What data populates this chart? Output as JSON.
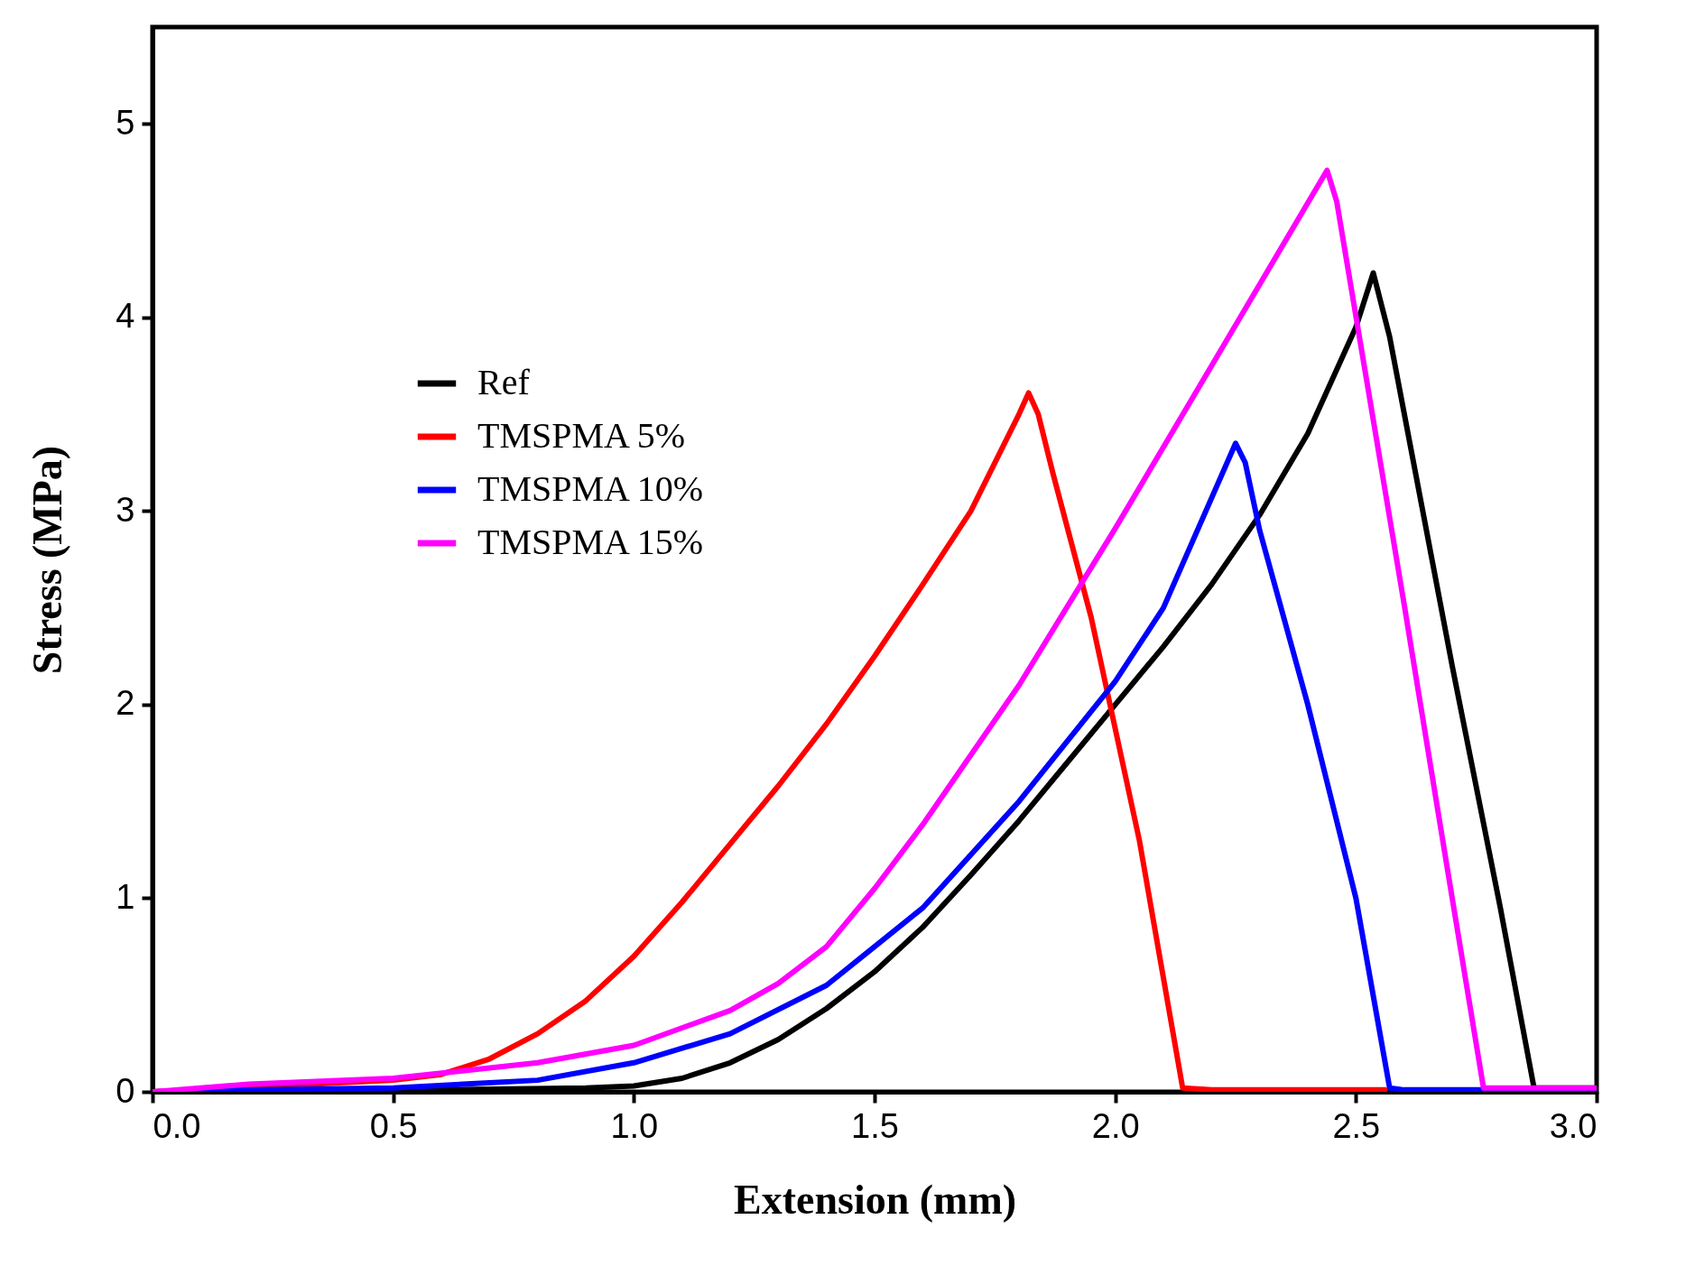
{
  "chart_data": {
    "type": "line",
    "xlabel": "Extension (mm)",
    "ylabel": "Stress (MPa)",
    "xlim": [
      0,
      3
    ],
    "ylim": [
      0,
      5.5
    ],
    "xticks": [
      {
        "value": 0,
        "label": "0.0"
      },
      {
        "value": 0.5,
        "label": "0.5"
      },
      {
        "value": 1,
        "label": "1.0"
      },
      {
        "value": 1.5,
        "label": "1.5"
      },
      {
        "value": 2,
        "label": "2.0"
      },
      {
        "value": 2.5,
        "label": "2.5"
      },
      {
        "value": 3,
        "label": "3.0"
      }
    ],
    "yticks": [
      0,
      1,
      2,
      3,
      4,
      5
    ],
    "grid": false,
    "legend": "left",
    "line_style": "solid",
    "marker": "none",
    "series": [
      {
        "name": "Ref",
        "color": "#000000",
        "x": [
          0,
          0.3,
          0.6,
          0.9,
          1.0,
          1.1,
          1.2,
          1.3,
          1.4,
          1.5,
          1.6,
          1.7,
          1.8,
          1.9,
          2.0,
          2.1,
          2.2,
          2.3,
          2.4,
          2.5,
          2.536,
          2.57,
          2.7,
          2.8,
          2.87,
          2.9,
          3.0
        ],
        "values": [
          0,
          0.01,
          0.01,
          0.02,
          0.03,
          0.07,
          0.15,
          0.27,
          0.43,
          0.62,
          0.85,
          1.12,
          1.4,
          1.7,
          2.0,
          2.3,
          2.62,
          2.98,
          3.4,
          3.95,
          4.23,
          3.9,
          2.2,
          0.95,
          0.02,
          0.02,
          0.02
        ]
      },
      {
        "name": "TMSPMA 5%",
        "color": "#ff0000",
        "x": [
          0,
          0.5,
          0.6,
          0.7,
          0.8,
          0.9,
          1.0,
          1.1,
          1.2,
          1.3,
          1.4,
          1.5,
          1.6,
          1.7,
          1.8,
          1.82,
          1.84,
          1.87,
          1.95,
          2.05,
          2.14,
          2.2,
          2.56
        ],
        "values": [
          0,
          0.06,
          0.09,
          0.17,
          0.3,
          0.47,
          0.7,
          0.98,
          1.28,
          1.58,
          1.9,
          2.25,
          2.62,
          3.0,
          3.5,
          3.61,
          3.5,
          3.2,
          2.45,
          1.3,
          0.02,
          0.01,
          0.01
        ]
      },
      {
        "name": "TMSPMA 10%",
        "color": "#0000ff",
        "x": [
          0,
          0.2,
          0.5,
          0.8,
          1.0,
          1.2,
          1.4,
          1.5,
          1.6,
          1.8,
          2.0,
          2.1,
          2.25,
          2.27,
          2.3,
          2.4,
          2.5,
          2.57,
          2.6,
          3.0
        ],
        "values": [
          0,
          0.01,
          0.02,
          0.06,
          0.15,
          0.3,
          0.55,
          0.75,
          0.95,
          1.5,
          2.12,
          2.5,
          3.35,
          3.25,
          2.9,
          2.0,
          1.0,
          0.02,
          0.01,
          0.01
        ]
      },
      {
        "name": "TMSPMA 15%",
        "color": "#ff00ff",
        "x": [
          0,
          0.2,
          0.5,
          0.8,
          1.0,
          1.2,
          1.3,
          1.4,
          1.5,
          1.6,
          1.8,
          2.0,
          2.2,
          2.44,
          2.46,
          2.6,
          2.7,
          2.765,
          2.8,
          3.0
        ],
        "values": [
          0,
          0.04,
          0.07,
          0.15,
          0.24,
          0.42,
          0.56,
          0.75,
          1.05,
          1.38,
          2.1,
          2.91,
          3.75,
          4.76,
          4.6,
          2.52,
          1.0,
          0.02,
          0.02,
          0.02
        ]
      }
    ]
  }
}
